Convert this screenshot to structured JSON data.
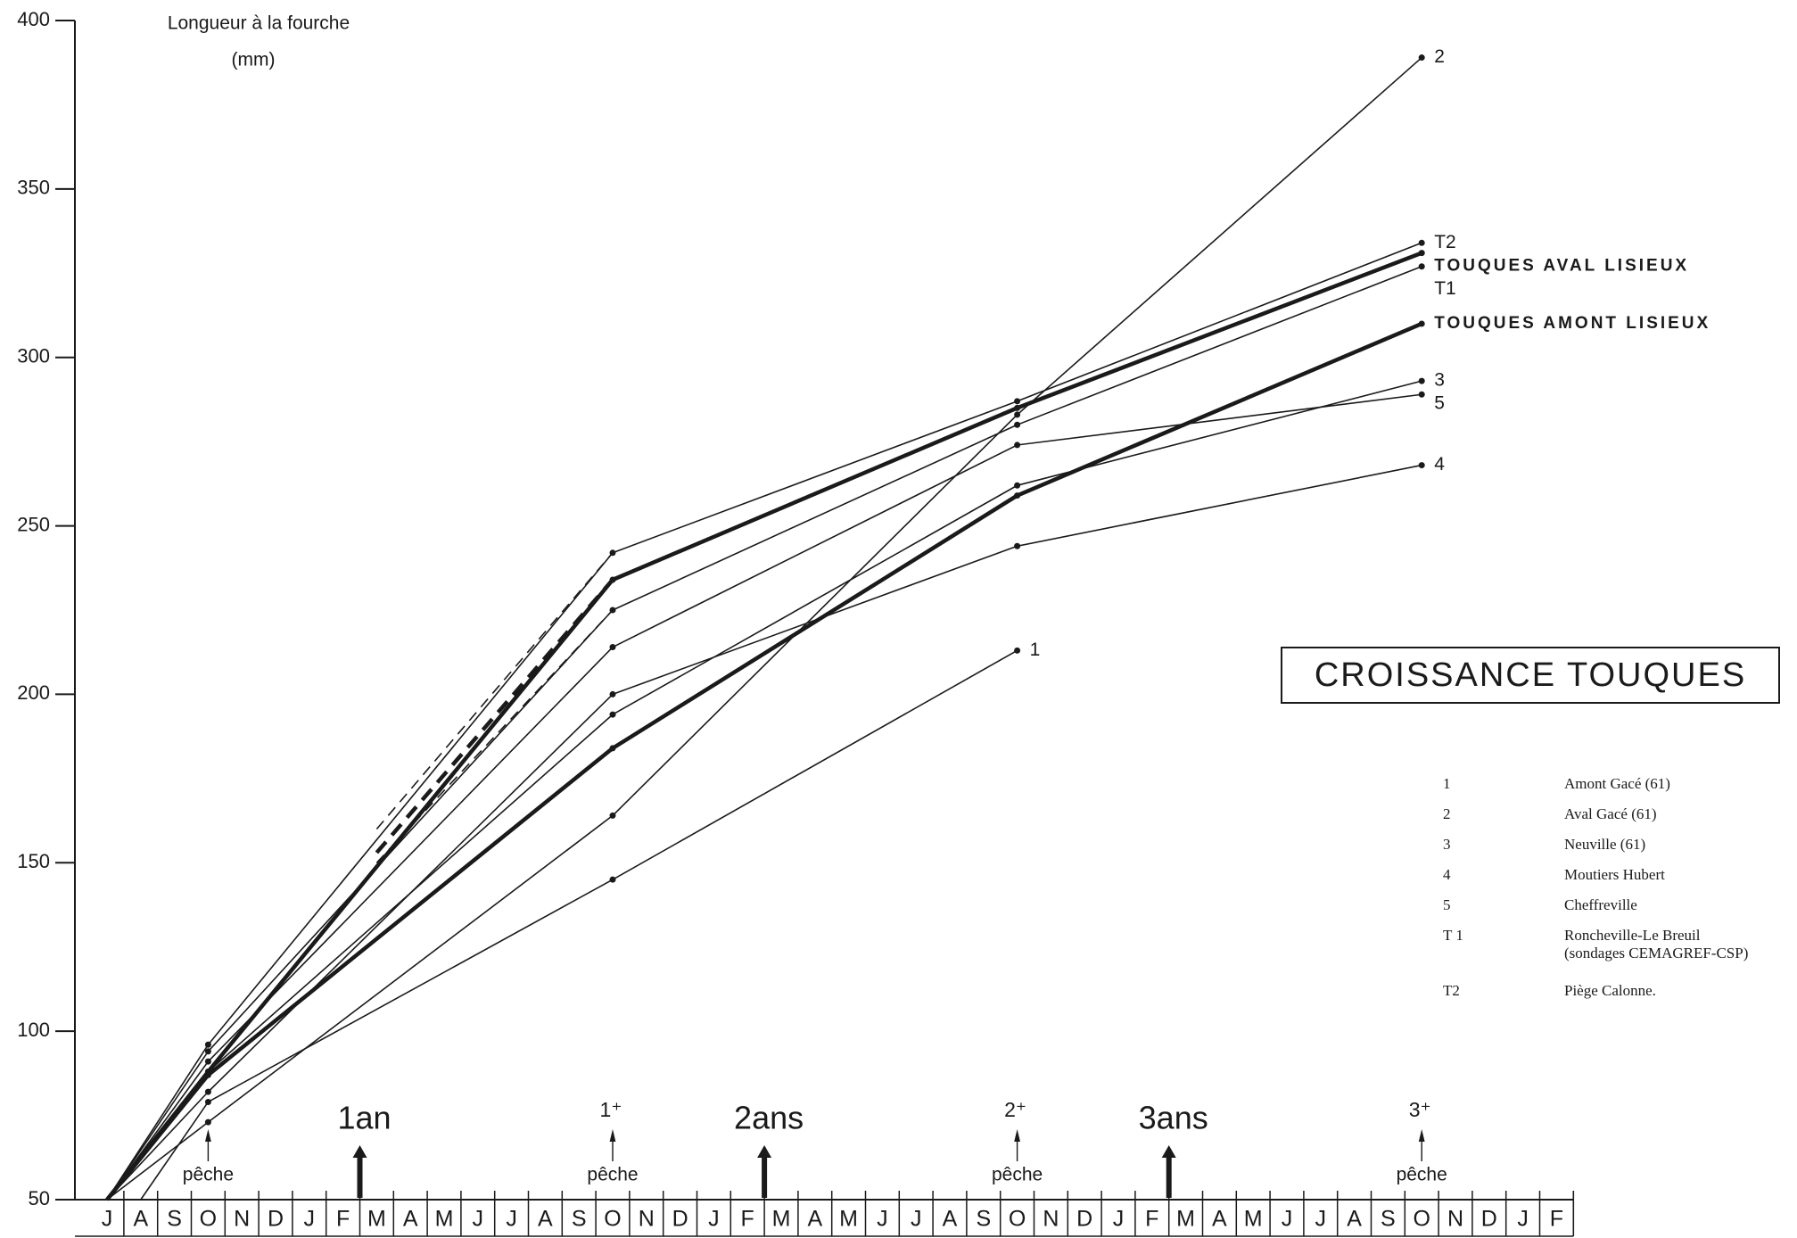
{
  "chart_data": {
    "type": "line",
    "title": "CROISSANCE TOUQUES",
    "y_label": [
      "Longueur à la fourche",
      "(mm)"
    ],
    "ylim": [
      50,
      400
    ],
    "yticks": [
      50,
      100,
      150,
      200,
      250,
      300,
      350,
      400
    ],
    "xlim": [
      -1,
      43.5
    ],
    "xticks": [
      {
        "value": 0,
        "label": "J"
      },
      {
        "value": 1,
        "label": "A"
      },
      {
        "value": 2,
        "label": "S"
      },
      {
        "value": 3,
        "label": "O"
      },
      {
        "value": 4,
        "label": "N"
      },
      {
        "value": 5,
        "label": "D"
      },
      {
        "value": 6,
        "label": "J"
      },
      {
        "value": 7,
        "label": "F"
      },
      {
        "value": 8,
        "label": "M"
      },
      {
        "value": 9,
        "label": "A"
      },
      {
        "value": 10,
        "label": "M"
      },
      {
        "value": 11,
        "label": "J"
      },
      {
        "value": 12,
        "label": "J"
      },
      {
        "value": 13,
        "label": "A"
      },
      {
        "value": 14,
        "label": "S"
      },
      {
        "value": 15,
        "label": "O"
      },
      {
        "value": 16,
        "label": "N"
      },
      {
        "value": 17,
        "label": "D"
      },
      {
        "value": 18,
        "label": "J"
      },
      {
        "value": 19,
        "label": "F"
      },
      {
        "value": 20,
        "label": "M"
      },
      {
        "value": 21,
        "label": "A"
      },
      {
        "value": 22,
        "label": "M"
      },
      {
        "value": 23,
        "label": "J"
      },
      {
        "value": 24,
        "label": "J"
      },
      {
        "value": 25,
        "label": "A"
      },
      {
        "value": 26,
        "label": "S"
      },
      {
        "value": 27,
        "label": "O"
      },
      {
        "value": 28,
        "label": "N"
      },
      {
        "value": 29,
        "label": "D"
      },
      {
        "value": 30,
        "label": "J"
      },
      {
        "value": 31,
        "label": "F"
      },
      {
        "value": 32,
        "label": "M"
      },
      {
        "value": 33,
        "label": "A"
      },
      {
        "value": 34,
        "label": "M"
      },
      {
        "value": 35,
        "label": "J"
      },
      {
        "value": 36,
        "label": "J"
      },
      {
        "value": 37,
        "label": "A"
      },
      {
        "value": 38,
        "label": "S"
      },
      {
        "value": 39,
        "label": "O"
      },
      {
        "value": 40,
        "label": "N"
      },
      {
        "value": 41,
        "label": "D"
      },
      {
        "value": 42,
        "label": "J"
      },
      {
        "value": 43,
        "label": "F"
      }
    ],
    "color": "#1a1a1a",
    "series": [
      {
        "name": "1",
        "x": [
          1,
          3,
          15,
          27
        ],
        "values": [
          50,
          79,
          145,
          213
        ],
        "width": 1.6
      },
      {
        "name": "2",
        "x": [
          0,
          3,
          15,
          27,
          39
        ],
        "values": [
          50,
          73,
          164,
          283,
          389
        ],
        "width": 1.6
      },
      {
        "name": "3",
        "x": [
          0,
          3,
          15,
          27,
          39
        ],
        "values": [
          50,
          88,
          194,
          262,
          293
        ],
        "width": 1.6
      },
      {
        "name": "4",
        "x": [
          0,
          3,
          15,
          27,
          39
        ],
        "values": [
          50,
          82,
          200,
          244,
          268
        ],
        "width": 1.6
      },
      {
        "name": "5",
        "x": [
          0,
          3,
          15,
          27,
          39
        ],
        "values": [
          50,
          91,
          214,
          274,
          289
        ],
        "width": 1.6
      },
      {
        "name": "T1",
        "x": [
          0,
          3,
          15,
          27,
          39
        ],
        "values": [
          50,
          94,
          225,
          280,
          327
        ],
        "width": 1.6
      },
      {
        "name": "T2",
        "x": [
          0,
          3,
          15,
          27,
          39
        ],
        "values": [
          50,
          96,
          242,
          287,
          334
        ],
        "width": 1.6
      },
      {
        "name": "TOUQUES AVAL LISIEUX",
        "x": [
          0,
          3,
          15,
          27,
          39
        ],
        "values": [
          50,
          88,
          234,
          285,
          331
        ],
        "width": 4.5
      },
      {
        "name": "TOUQUES AMONT LISIEUX",
        "x": [
          0,
          3,
          15,
          27,
          39
        ],
        "values": [
          50,
          87,
          184,
          259,
          310
        ],
        "width": 4.5
      }
    ],
    "extrapolations": [
      {
        "x": [
          8,
          15
        ],
        "values": [
          153,
          234
        ],
        "width": 4.5
      },
      {
        "x": [
          8,
          15
        ],
        "values": [
          160,
          242
        ],
        "width": 1.6
      },
      {
        "x": [
          8,
          15
        ],
        "values": [
          150,
          225
        ],
        "width": 1.6
      }
    ],
    "fishing": {
      "labels": [
        "pêche",
        "pêche",
        "pêche",
        "pêche"
      ],
      "x": [
        3,
        15,
        27,
        39
      ]
    },
    "age_marks": {
      "labels": [
        "1⁺",
        "2⁺",
        "3⁺"
      ],
      "x": [
        15,
        27,
        39
      ]
    },
    "year_marks": {
      "labels": [
        "1an",
        "2ans",
        "3ans"
      ],
      "x": [
        7.5,
        19.5,
        31.5
      ]
    },
    "legend_table": [
      {
        "key": "1",
        "text": [
          "Amont Gacé (61)"
        ]
      },
      {
        "key": "2",
        "text": [
          "Aval Gacé  (61)"
        ]
      },
      {
        "key": "3",
        "text": [
          "Neuville   (61)"
        ]
      },
      {
        "key": "4",
        "text": [
          "Moutiers Hubert"
        ]
      },
      {
        "key": "5",
        "text": [
          "Cheffreville"
        ]
      },
      {
        "key": "T 1",
        "text": [
          "Roncheville-Le Breuil",
          "(sondages CEMAGREF-CSP)"
        ]
      },
      {
        "key": "T2",
        "text": [
          "Piège Calonne."
        ]
      }
    ]
  }
}
